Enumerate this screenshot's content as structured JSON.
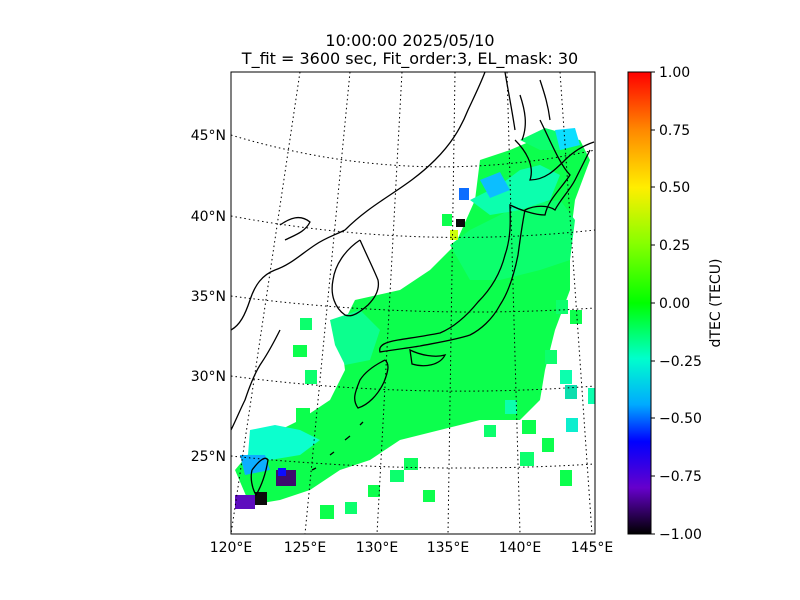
{
  "title": {
    "line1": "10:00:00 2025/05/10",
    "line2": "T_fit = 3600 sec, Fit_order:3, EL_mask: 30"
  },
  "map": {
    "lat_labels": [
      "45°N",
      "40°N",
      "35°N",
      "30°N",
      "25°N"
    ],
    "lon_labels": [
      "120°E",
      "125°E",
      "130°E",
      "135°E",
      "140°E",
      "145°E"
    ],
    "lon_range": [
      120,
      145
    ],
    "lat_range": [
      20,
      49
    ],
    "projection": "conic",
    "gridlines": "dotted"
  },
  "colorbar": {
    "label": "dTEC (TECU)",
    "ticks": [
      "1.00",
      "0.75",
      "0.50",
      "0.25",
      "0.00",
      "−0.25",
      "−0.50",
      "−0.75",
      "−1.00"
    ],
    "range": [
      -1.0,
      1.0
    ],
    "colormap": [
      "#ff0000",
      "#ffaa00",
      "#ccff00",
      "#00ff00",
      "#00ffcc",
      "#00aaff",
      "#0000ff",
      "#6600cc",
      "#000000"
    ]
  }
}
